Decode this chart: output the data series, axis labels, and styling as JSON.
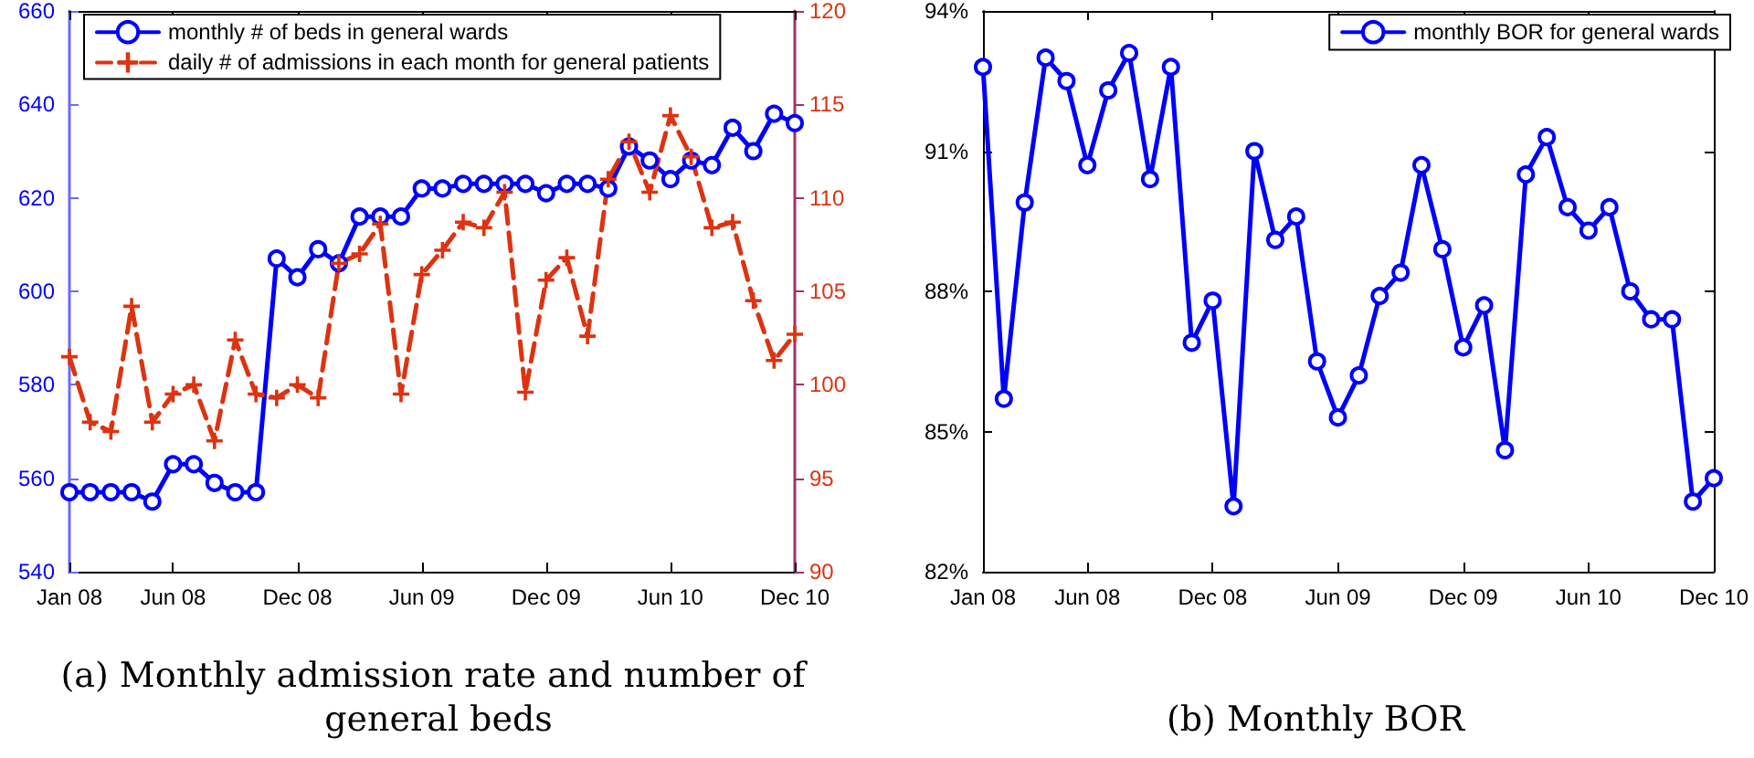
{
  "chart_data": [
    {
      "type": "line",
      "title": "(a) Monthly admission rate and number of general beds",
      "categories": [
        "Jan 08",
        null,
        null,
        null,
        null,
        "Jun 08",
        null,
        null,
        null,
        null,
        null,
        "Dec 08",
        null,
        null,
        null,
        null,
        null,
        "Jun 09",
        null,
        null,
        null,
        null,
        null,
        "Dec 09",
        null,
        null,
        null,
        null,
        null,
        "Jun 10",
        null,
        null,
        null,
        null,
        null,
        "Dec 10"
      ],
      "series": [
        {
          "name": "monthly # of beds in general wards",
          "color": "#0000ff",
          "marker": "circle",
          "line_style": "solid",
          "values": [
            557,
            557,
            557,
            557,
            555,
            563,
            563,
            559,
            557,
            557,
            607,
            603,
            609,
            606,
            616,
            616,
            616,
            622,
            622,
            623,
            623,
            623,
            623,
            621,
            623,
            623,
            622,
            631,
            628,
            624,
            628,
            627,
            635,
            630,
            638,
            636
          ]
        },
        {
          "name": "daily # of admissions in each month for general patients",
          "color": "#dd3311",
          "marker": "cross",
          "line_style": "dashed",
          "axis": "y2",
          "values": [
            101.5,
            98,
            97.5,
            104.2,
            98,
            99.5,
            100,
            97,
            102.4,
            99.5,
            99.3,
            100,
            99.3,
            106.5,
            107,
            108.6,
            99.5,
            105.9,
            107.2,
            108.7,
            108.4,
            110.3,
            99.6,
            105.6,
            106.8,
            102.6,
            111,
            113,
            110.3,
            114.4,
            112.2,
            108.4,
            108.7,
            104.5,
            101.3,
            102.7
          ]
        }
      ],
      "ylim": [
        540,
        660
      ],
      "yticks": [
        540,
        560,
        580,
        600,
        620,
        640,
        660
      ],
      "y2lim": [
        90,
        120
      ],
      "y2ticks": [
        90,
        95,
        100,
        105,
        110,
        115,
        120
      ],
      "grid": false,
      "legend": "top left"
    },
    {
      "type": "line",
      "title": "(b) Monthly BOR",
      "categories": [
        "Jan 08",
        null,
        null,
        null,
        null,
        "Jun 08",
        null,
        null,
        null,
        null,
        null,
        "Dec 08",
        null,
        null,
        null,
        null,
        null,
        "Jun 09",
        null,
        null,
        null,
        null,
        null,
        "Dec 09",
        null,
        null,
        null,
        null,
        null,
        "Jun 10",
        null,
        null,
        null,
        null,
        null,
        "Dec 10"
      ],
      "series": [
        {
          "name": "monthly BOR for general wards",
          "color": "#0000ff",
          "values": [
            92.8,
            85.7,
            89.9,
            93.0,
            92.5,
            90.7,
            92.3,
            93.1,
            90.4,
            92.8,
            86.9,
            87.8,
            83.4,
            91.0,
            89.1,
            89.6,
            86.5,
            85.3,
            86.2,
            87.9,
            88.4,
            90.7,
            88.9,
            86.8,
            87.7,
            84.6,
            90.5,
            91.3,
            89.8,
            89.3,
            89.8,
            88.0,
            87.4,
            87.4,
            83.5,
            84.0
          ]
        }
      ],
      "ylim": [
        82,
        94
      ],
      "yticks": [
        {
          "value": 82,
          "label": "82%"
        },
        {
          "value": 85,
          "label": "85%"
        },
        {
          "value": 88,
          "label": "88%"
        },
        {
          "value": 91,
          "label": "91%"
        },
        {
          "value": 94,
          "label": "94%"
        }
      ],
      "grid": false,
      "legend": "top right",
      "marker": "circle",
      "line_style": "solid"
    }
  ]
}
